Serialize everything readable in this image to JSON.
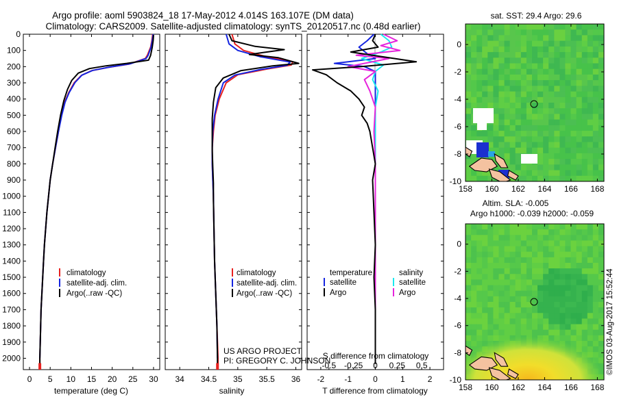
{
  "title": {
    "line1": "Argo profile: aoml 5903824_18 17-May-2012 4.014S 163.107E (DM data)",
    "line2": "Climatology: CARS2009. Satellite-adjusted climatology: synTS_20120517.nc (0.48d earlier)"
  },
  "credit": {
    "project": "US ARGO PROJECT",
    "pi": "PI: GREGORY C. JOHNSON",
    "stamp": "©IMOS 03-Aug-2017 15:52:44"
  },
  "colors": {
    "climatology": "#e8201e",
    "satellite": "#1424e0",
    "argo": "#000000",
    "sat_salinity": "#19e8ef",
    "argo_salinity": "#e624dc",
    "land": "#f4c2a0"
  },
  "depth_axis": {
    "ticks": [
      0,
      100,
      200,
      300,
      400,
      500,
      600,
      700,
      800,
      900,
      1000,
      1100,
      1200,
      1300,
      1400,
      1500,
      1600,
      1700,
      1800,
      1900,
      2000
    ],
    "range": [
      0,
      2070
    ]
  },
  "chart_data": [
    {
      "id": "temperature",
      "type": "line",
      "xlabel": "temperature (deg C)",
      "xlim": [
        -1.5,
        31.5
      ],
      "xticks": [
        0,
        5,
        10,
        15,
        20,
        25,
        30
      ],
      "ylim": [
        0,
        2070
      ],
      "legend": [
        "climatology",
        "satellite-adj. clim.",
        "Argo(..raw -QC)"
      ],
      "series": [
        {
          "name": "climatology",
          "color": "#e8201e",
          "width": 2,
          "points": [
            [
              29.8,
              0
            ],
            [
              29.6,
              40
            ],
            [
              29.3,
              80
            ],
            [
              28.5,
              130
            ],
            [
              28.0,
              150
            ],
            [
              24,
              185
            ],
            [
              19,
              205
            ],
            [
              15,
              225
            ],
            [
              12.5,
              255
            ],
            [
              10.8,
              300
            ],
            [
              9.5,
              360
            ],
            [
              8.5,
              420
            ],
            [
              7.7,
              500
            ],
            [
              7.0,
              600
            ],
            [
              6.3,
              700
            ],
            [
              5.6,
              800
            ],
            [
              5.0,
              900
            ],
            [
              4.6,
              1000
            ],
            [
              4.2,
              1100
            ],
            [
              3.9,
              1200
            ],
            [
              3.6,
              1300
            ],
            [
              3.4,
              1400
            ],
            [
              3.2,
              1500
            ],
            [
              3.0,
              1600
            ],
            [
              2.8,
              1700
            ],
            [
              2.7,
              1800
            ],
            [
              2.6,
              1900
            ],
            [
              2.5,
              2000
            ],
            [
              2.5,
              2070
            ]
          ]
        },
        {
          "name": "satellite",
          "color": "#1424e0",
          "width": 2,
          "points": [
            [
              29.9,
              0
            ],
            [
              29.7,
              40
            ],
            [
              29.4,
              80
            ],
            [
              28.7,
              130
            ],
            [
              28.2,
              150
            ],
            [
              24.3,
              183
            ],
            [
              19.3,
              203
            ],
            [
              15.3,
              223
            ],
            [
              12.7,
              252
            ],
            [
              11.0,
              298
            ],
            [
              9.6,
              360
            ],
            [
              8.6,
              420
            ],
            [
              7.8,
              500
            ],
            [
              7.0,
              600
            ],
            [
              6.3,
              700
            ],
            [
              5.6,
              800
            ],
            [
              5.0,
              900
            ],
            [
              4.6,
              1000
            ],
            [
              4.2,
              1100
            ],
            [
              3.9,
              1200
            ],
            [
              3.6,
              1300
            ],
            [
              3.4,
              1400
            ],
            [
              3.2,
              1500
            ],
            [
              3.0,
              1600
            ],
            [
              2.8,
              1700
            ],
            [
              2.7,
              1800
            ],
            [
              2.6,
              1900
            ],
            [
              2.5,
              2000
            ]
          ]
        },
        {
          "name": "Argo",
          "color": "#000000",
          "width": 2,
          "points": [
            [
              30.0,
              5
            ],
            [
              29.9,
              40
            ],
            [
              29.7,
              80
            ],
            [
              29.3,
              130
            ],
            [
              28.8,
              160
            ],
            [
              23.5,
              180
            ],
            [
              18.5,
              195
            ],
            [
              14.5,
              212
            ],
            [
              11.8,
              240
            ],
            [
              10.2,
              285
            ],
            [
              9.2,
              340
            ],
            [
              8.3,
              410
            ],
            [
              7.5,
              500
            ],
            [
              6.8,
              600
            ],
            [
              6.2,
              700
            ],
            [
              5.6,
              800
            ],
            [
              5.0,
              900
            ],
            [
              4.6,
              1000
            ],
            [
              4.2,
              1100
            ],
            [
              3.9,
              1200
            ],
            [
              3.6,
              1300
            ],
            [
              3.4,
              1400
            ],
            [
              3.2,
              1500
            ],
            [
              3.0,
              1600
            ],
            [
              2.8,
              1700
            ],
            [
              2.7,
              1800
            ],
            [
              2.6,
              1900
            ],
            [
              2.5,
              2000
            ],
            [
              2.5,
              2035
            ]
          ]
        }
      ]
    },
    {
      "id": "salinity",
      "type": "line",
      "xlabel": "salinity",
      "xlim": [
        33.75,
        36.1
      ],
      "xticks": [
        34,
        34.5,
        35,
        35.5,
        36
      ],
      "xticklabels": [
        "34",
        "34.5",
        "35",
        "35.5",
        "36"
      ],
      "ylim": [
        0,
        2070
      ],
      "legend": [
        "climatology",
        "satellite-adj. clim.",
        "Argo(..raw -QC)"
      ],
      "series": [
        {
          "name": "climatology",
          "color": "#e8201e",
          "width": 2,
          "points": [
            [
              34.9,
              0
            ],
            [
              34.95,
              60
            ],
            [
              35.1,
              100
            ],
            [
              35.5,
              140
            ],
            [
              35.95,
              170
            ],
            [
              35.92,
              190
            ],
            [
              35.5,
              215
            ],
            [
              35.0,
              250
            ],
            [
              34.8,
              300
            ],
            [
              34.68,
              400
            ],
            [
              34.61,
              500
            ],
            [
              34.58,
              600
            ],
            [
              34.56,
              700
            ],
            [
              34.56,
              800
            ],
            [
              34.57,
              900
            ],
            [
              34.58,
              1000
            ],
            [
              34.59,
              1200
            ],
            [
              34.6,
              1400
            ],
            [
              34.62,
              1600
            ],
            [
              34.64,
              1800
            ],
            [
              34.66,
              2000
            ],
            [
              34.66,
              2070
            ]
          ]
        },
        {
          "name": "satellite",
          "color": "#1424e0",
          "width": 2,
          "points": [
            [
              34.8,
              0
            ],
            [
              34.85,
              60
            ],
            [
              35.0,
              100
            ],
            [
              35.4,
              140
            ],
            [
              35.9,
              172
            ],
            [
              35.85,
              192
            ],
            [
              35.4,
              217
            ],
            [
              34.95,
              252
            ],
            [
              34.75,
              300
            ],
            [
              34.66,
              400
            ],
            [
              34.6,
              500
            ],
            [
              34.57,
              600
            ],
            [
              34.56,
              700
            ],
            [
              34.56,
              800
            ],
            [
              34.57,
              900
            ],
            [
              34.58,
              1000
            ],
            [
              34.59,
              1200
            ],
            [
              34.6,
              1400
            ],
            [
              34.62,
              1600
            ],
            [
              34.64,
              1800
            ],
            [
              34.65,
              2000
            ]
          ]
        },
        {
          "name": "Argo",
          "color": "#000000",
          "width": 2,
          "points": [
            [
              34.85,
              0
            ],
            [
              34.9,
              40
            ],
            [
              35.3,
              75
            ],
            [
              35.8,
              95
            ],
            [
              35.5,
              110
            ],
            [
              35.2,
              125
            ],
            [
              35.7,
              145
            ],
            [
              36.05,
              180
            ],
            [
              35.6,
              195
            ],
            [
              35.05,
              225
            ],
            [
              34.75,
              270
            ],
            [
              34.62,
              330
            ],
            [
              34.58,
              420
            ],
            [
              34.56,
              520
            ],
            [
              34.56,
              620
            ],
            [
              34.56,
              720
            ],
            [
              34.57,
              820
            ],
            [
              34.58,
              920
            ],
            [
              34.58,
              1020
            ],
            [
              34.59,
              1200
            ],
            [
              34.6,
              1400
            ],
            [
              34.62,
              1600
            ],
            [
              34.64,
              1800
            ],
            [
              34.65,
              2000
            ],
            [
              34.65,
              2035
            ]
          ]
        }
      ]
    },
    {
      "id": "difference",
      "type": "line",
      "xlabel": "T difference from climatology",
      "xlabel_top": "S difference from climatology",
      "xlim": [
        -2.5,
        2.5
      ],
      "xticks": [
        -2,
        -1,
        0,
        1,
        2
      ],
      "xticks_top": [
        [
          -1.7,
          "-0.5"
        ],
        [
          -0.8,
          "-0.25"
        ],
        [
          0,
          "0"
        ],
        [
          0.8,
          "0.25"
        ],
        [
          1.7,
          "0.5"
        ]
      ],
      "ylim": [
        0,
        2070
      ],
      "legend_headers": [
        "temperature",
        "salinity"
      ],
      "legend": [
        "satellite",
        "Argo",
        "satellite",
        "Argo"
      ],
      "series": [
        {
          "name": "T satellite",
          "color": "#1424e0",
          "width": 2,
          "points": [
            [
              -0.05,
              0
            ],
            [
              -0.3,
              40
            ],
            [
              -0.6,
              80
            ],
            [
              -0.3,
              120
            ],
            [
              0.0,
              150
            ],
            [
              -1.5,
              180
            ],
            [
              -0.4,
              200
            ],
            [
              0.0,
              230
            ],
            [
              0.0,
              300
            ],
            [
              0.0,
              400
            ],
            [
              0.0,
              2000
            ]
          ]
        },
        {
          "name": "S satellite",
          "color": "#19e8ef",
          "width": 2,
          "points": [
            [
              0.2,
              0
            ],
            [
              0.5,
              40
            ],
            [
              0.6,
              80
            ],
            [
              0.2,
              110
            ],
            [
              -0.5,
              150
            ],
            [
              0.3,
              190
            ],
            [
              0.0,
              230
            ],
            [
              -0.1,
              280
            ],
            [
              0.1,
              350
            ],
            [
              0.0,
              450
            ],
            [
              0.0,
              2000
            ]
          ]
        },
        {
          "name": "S Argo",
          "color": "#e624dc",
          "width": 2,
          "points": [
            [
              0.3,
              0
            ],
            [
              0.8,
              40
            ],
            [
              0.2,
              70
            ],
            [
              0.9,
              100
            ],
            [
              -0.7,
              130
            ],
            [
              0.5,
              150
            ],
            [
              -1.0,
              200
            ],
            [
              0.0,
              230
            ],
            [
              -0.4,
              280
            ],
            [
              -0.2,
              350
            ],
            [
              0.0,
              450
            ],
            [
              -0.05,
              600
            ],
            [
              0.0,
              800
            ],
            [
              0.0,
              2000
            ]
          ]
        },
        {
          "name": "T Argo",
          "color": "#000000",
          "width": 2,
          "points": [
            [
              0.0,
              0
            ],
            [
              -0.1,
              40
            ],
            [
              0.1,
              80
            ],
            [
              -0.9,
              110
            ],
            [
              1.5,
              170
            ],
            [
              -0.5,
              200
            ],
            [
              -2.3,
              220
            ],
            [
              -1.8,
              250
            ],
            [
              -1.4,
              300
            ],
            [
              -0.9,
              350
            ],
            [
              -0.6,
              400
            ],
            [
              -0.4,
              450
            ],
            [
              -0.5,
              500
            ],
            [
              -0.3,
              550
            ],
            [
              -0.2,
              600
            ],
            [
              -0.1,
              700
            ],
            [
              0.0,
              800
            ],
            [
              -0.1,
              900
            ],
            [
              -0.05,
              1100
            ],
            [
              0.0,
              1300
            ],
            [
              -0.05,
              1500
            ],
            [
              0.0,
              1700
            ],
            [
              0.0,
              1900
            ],
            [
              0.0,
              2035
            ]
          ]
        }
      ]
    },
    {
      "id": "sst_map",
      "type": "heatmap",
      "title": "sat. SST: 29.4 Argo: 29.6",
      "xlim": [
        158,
        168.5
      ],
      "ylim": [
        -10,
        1.5
      ],
      "xticks": [
        158,
        160,
        162,
        164,
        166,
        168
      ],
      "yticks": [
        0,
        -2,
        -4,
        -6,
        -8,
        -10
      ],
      "float_position": [
        163.107,
        -4.014
      ]
    },
    {
      "id": "sla_map",
      "type": "heatmap",
      "title_line1": "Altim. SLA: -0.005",
      "title_line2": "Argo h1000: -0.039 h2000: -0.059",
      "xlim": [
        158,
        168.5
      ],
      "ylim": [
        -10,
        1.5
      ],
      "xticks": [
        158,
        160,
        162,
        164,
        166,
        168
      ],
      "yticks": [
        0,
        -2,
        -4,
        -6,
        -8,
        -10
      ],
      "float_position": [
        163.107,
        -4.014
      ]
    }
  ]
}
